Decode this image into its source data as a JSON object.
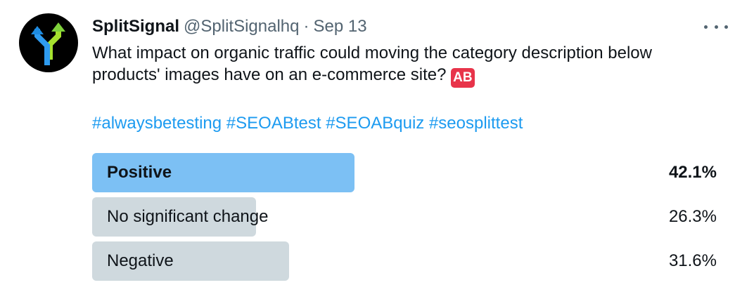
{
  "author": {
    "display_name": "SplitSignal",
    "handle": "@SplitSignalhq",
    "separator": "·",
    "date": "Sep 13",
    "avatar_icon": "split-arrows-icon"
  },
  "tweet": {
    "text": "What impact on organic traffic could moving the category description below products' images have on an e-commerce site?",
    "emoji_badge": "AB",
    "hashtags": [
      "#alwaysbetesting",
      "#SEOABtest",
      "#SEOABquiz",
      "#seosplittest"
    ]
  },
  "poll": {
    "options": [
      {
        "label": "Positive",
        "percent_text": "42.1%",
        "percent": 42.1,
        "winner": true
      },
      {
        "label": "No significant change",
        "percent_text": "26.3%",
        "percent": 26.3,
        "winner": false
      },
      {
        "label": "Negative",
        "percent_text": "31.6%",
        "percent": 31.6,
        "winner": false
      }
    ]
  },
  "colors": {
    "link": "#1d9bf0",
    "winner_bar": "#7cc0f4",
    "bar": "#cfd9de",
    "badge": "#e8344a"
  }
}
